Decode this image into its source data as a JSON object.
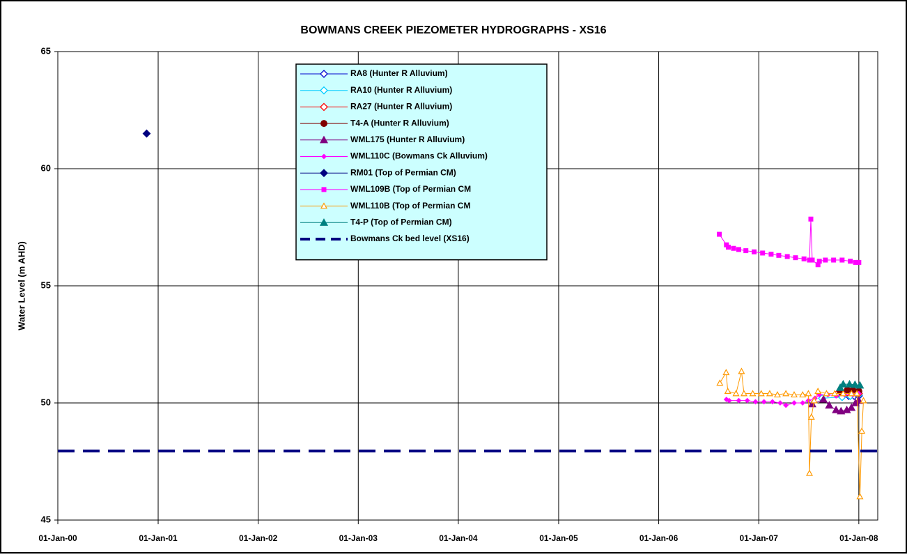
{
  "chart_data": {
    "type": "line",
    "title": "BOWMANS CREEK PIEZOMETER HYDROGRAPHS - XS16",
    "y_label": "Water Level (m AHD)",
    "xlim": [
      "2000-01-01",
      "2008-03-10"
    ],
    "xticks": [
      {
        "value": "2000-01-01",
        "label": "01-Jan-00"
      },
      {
        "value": "2001-01-01",
        "label": "01-Jan-01"
      },
      {
        "value": "2002-01-01",
        "label": "01-Jan-02"
      },
      {
        "value": "2003-01-01",
        "label": "01-Jan-03"
      },
      {
        "value": "2004-01-01",
        "label": "01-Jan-04"
      },
      {
        "value": "2005-01-01",
        "label": "01-Jan-05"
      },
      {
        "value": "2006-01-01",
        "label": "01-Jan-06"
      },
      {
        "value": "2007-01-01",
        "label": "01-Jan-07"
      },
      {
        "value": "2008-01-01",
        "label": "01-Jan-08"
      }
    ],
    "ylim": [
      45,
      65
    ],
    "yticks": [
      45,
      50,
      55,
      60,
      65
    ],
    "grid": true,
    "legend": "top",
    "series": [
      {
        "name": "RA8 (Hunter R Alluvium)",
        "color": "#0000cc",
        "marker": "diamond-open",
        "x": [
          "2007-11-01",
          "2007-11-25",
          "2007-12-15",
          "2008-01-01"
        ],
        "values": [
          50.35,
          50.3,
          50.3,
          50.3
        ]
      },
      {
        "name": "RA10 (Hunter R Alluvium)",
        "color": "#00ccff",
        "marker": "diamond-open",
        "x": [
          "2007-08-20",
          "2007-11-01",
          "2007-12-01",
          "2008-01-01"
        ],
        "values": [
          50.2,
          50.25,
          50.3,
          50.35
        ]
      },
      {
        "name": "RA27 (Hunter R Alluvium)",
        "color": "#ff0000",
        "marker": "diamond-open",
        "x": [
          "2007-10-15",
          "2007-11-20",
          "2007-12-15",
          "2008-01-01"
        ],
        "values": [
          50.4,
          50.45,
          50.45,
          50.4
        ]
      },
      {
        "name": "T4-A (Hunter R Alluvium)",
        "color": "#800000",
        "marker": "circle",
        "x": [
          "2007-10-25",
          "2007-11-20",
          "2007-12-10",
          "2008-01-01"
        ],
        "values": [
          50.5,
          50.55,
          50.55,
          50.5
        ]
      },
      {
        "name": "WML175 (Hunter R Alluvium)",
        "color": "#800080",
        "marker": "triangle",
        "x": [
          "2007-07-15",
          "2007-08-25",
          "2007-09-15",
          "2007-10-10",
          "2007-10-28",
          "2007-11-18",
          "2007-12-05",
          "2007-12-20",
          "2008-01-01"
        ],
        "values": [
          49.95,
          50.15,
          49.9,
          49.7,
          49.65,
          49.7,
          49.8,
          50.0,
          50.1
        ]
      },
      {
        "name": "WML110C (Bowmans Ck Alluvium)",
        "color": "#ff00ff",
        "marker": "diamond-small",
        "x": [
          "2006-09-05",
          "2006-09-15",
          "2006-10-20",
          "2006-11-20",
          "2006-12-20",
          "2007-01-20",
          "2007-02-20",
          "2007-03-20",
          "2007-04-10",
          "2007-05-10",
          "2007-06-10",
          "2007-07-01",
          "2007-07-25",
          "2007-08-10",
          "2007-09-10",
          "2007-10-10",
          "2007-11-10",
          "2007-12-10",
          "2008-01-01"
        ],
        "values": [
          50.15,
          50.1,
          50.1,
          50.1,
          50.05,
          50.05,
          50.05,
          50.0,
          49.9,
          50.0,
          50.0,
          50.1,
          50.2,
          50.35,
          50.35,
          50.3,
          50.35,
          50.35,
          50.4
        ]
      },
      {
        "name": "RM01 (Top of Permian CM)",
        "color": "#000080",
        "marker": "diamond",
        "x": [
          "2000-11-20"
        ],
        "values": [
          61.5
        ]
      },
      {
        "name": "WML109B (Top of Permian CM",
        "color": "#ff00ff",
        "marker": "square",
        "x": [
          "2006-08-10",
          "2006-09-05",
          "2006-09-12",
          "2006-10-01",
          "2006-10-20",
          "2006-11-15",
          "2006-12-15",
          "2007-01-15",
          "2007-02-15",
          "2007-03-15",
          "2007-04-15",
          "2007-05-15",
          "2007-06-15",
          "2007-07-05",
          "2007-07-10",
          "2007-07-15",
          "2007-08-05",
          "2007-08-10",
          "2007-09-01",
          "2007-10-01",
          "2007-11-01",
          "2007-12-01",
          "2007-12-20",
          "2008-01-01"
        ],
        "values": [
          57.2,
          56.75,
          56.65,
          56.6,
          56.55,
          56.5,
          56.45,
          56.4,
          56.35,
          56.3,
          56.25,
          56.2,
          56.15,
          56.1,
          57.85,
          56.1,
          55.9,
          56.05,
          56.1,
          56.1,
          56.1,
          56.05,
          56.0,
          56.0
        ]
      },
      {
        "name": "WML110B (Top of Permian CM",
        "color": "#ff9900",
        "marker": "triangle-open",
        "x": [
          "2006-08-12",
          "2006-09-04",
          "2006-09-10",
          "2006-10-10",
          "2006-10-30",
          "2006-11-08",
          "2006-12-10",
          "2007-01-10",
          "2007-02-10",
          "2007-03-10",
          "2007-04-10",
          "2007-05-10",
          "2007-06-10",
          "2007-07-01",
          "2007-07-05",
          "2007-07-12",
          "2007-07-22",
          "2007-08-05",
          "2007-09-05",
          "2007-10-05",
          "2007-11-05",
          "2007-12-05",
          "2007-12-25",
          "2008-01-05",
          "2008-01-12",
          "2008-01-18"
        ],
        "values": [
          50.85,
          51.3,
          50.5,
          50.4,
          51.35,
          50.4,
          50.4,
          50.4,
          50.4,
          50.35,
          50.4,
          50.35,
          50.35,
          50.4,
          47.0,
          49.4,
          50.1,
          50.5,
          50.4,
          50.4,
          50.4,
          50.4,
          50.4,
          46.0,
          48.8,
          50.1
        ]
      },
      {
        "name": "T4-P (Top of Permian CM)",
        "color": "#008080",
        "marker": "triangle",
        "x": [
          "2007-10-25",
          "2007-11-05",
          "2007-11-28",
          "2007-12-18",
          "2008-01-05"
        ],
        "values": [
          50.65,
          50.8,
          50.8,
          50.78,
          50.75
        ]
      },
      {
        "name": "Bowmans Ck bed level (XS16)",
        "color": "#000080",
        "marker": "dash",
        "x": [
          "2000-01-01",
          "2008-03-10"
        ],
        "values": [
          47.95,
          47.95
        ]
      }
    ]
  }
}
